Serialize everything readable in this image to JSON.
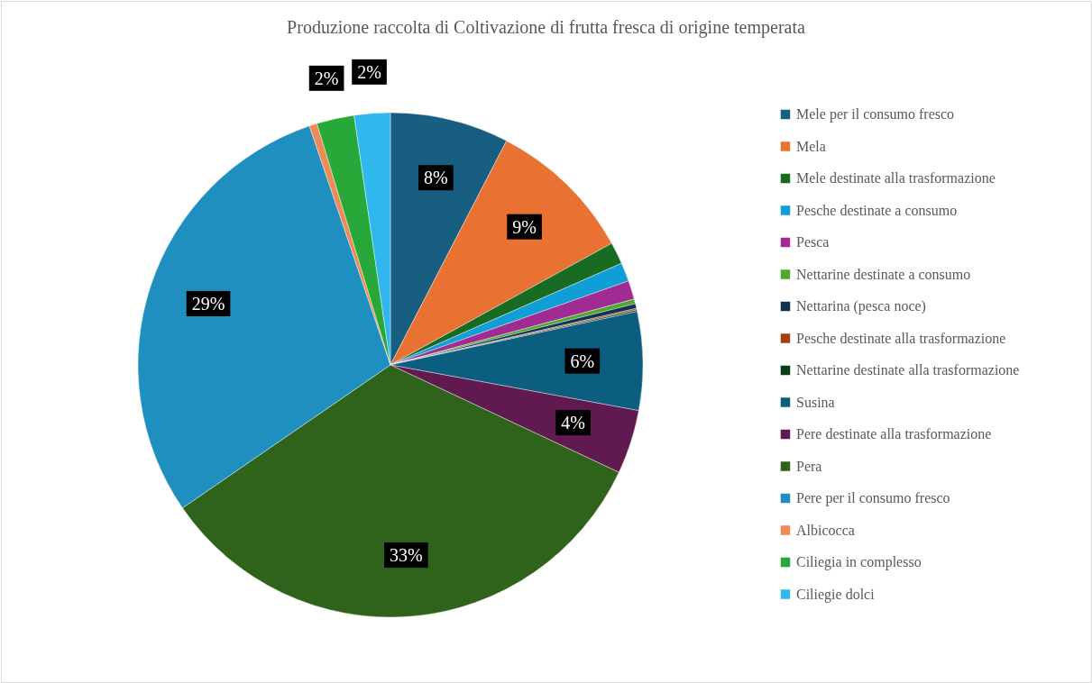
{
  "chart_data": {
    "type": "pie",
    "title": "Produzione raccolta di Coltivazione di frutta fresca di origine temperata",
    "categories": [
      "Mele per il consumo fresco",
      "Mela",
      "Mele destinate alla trasformazione",
      "Pesche destinate a consumo",
      "Pesca",
      "Nettarine destinate a consumo",
      "Nettarina (pesca noce)",
      "Pesche destinate alla trasformazione",
      "Nettarine destinate alla trasformazione",
      "Susina",
      "Pere destinate alla trasformazione",
      "Pera",
      "Pere per il consumo fresco",
      "Albicocca",
      "Ciliegia in complesso",
      "Ciliegie dolci"
    ],
    "values": [
      7.6,
      9.4,
      1.4,
      1.2,
      1.2,
      0.3,
      0.3,
      0.1,
      0.1,
      6.3,
      4.1,
      33.4,
      29.4,
      0.5,
      2.4,
      2.3
    ],
    "value_labels": [
      "8%",
      "9%",
      null,
      null,
      null,
      null,
      null,
      null,
      null,
      "6%",
      "4%",
      "33%",
      "29%",
      null,
      "2%",
      "2%"
    ],
    "colors": [
      "#185e81",
      "#e97132",
      "#196b24",
      "#0f9ed5",
      "#a02b93",
      "#4ea72e",
      "#0e3350",
      "#a5400f",
      "#0c3e15",
      "#0b5e80",
      "#601a4f",
      "#2f631c",
      "#1f8fc0",
      "#ed8a55",
      "#28a838",
      "#30b8ee"
    ],
    "legend": "right"
  }
}
